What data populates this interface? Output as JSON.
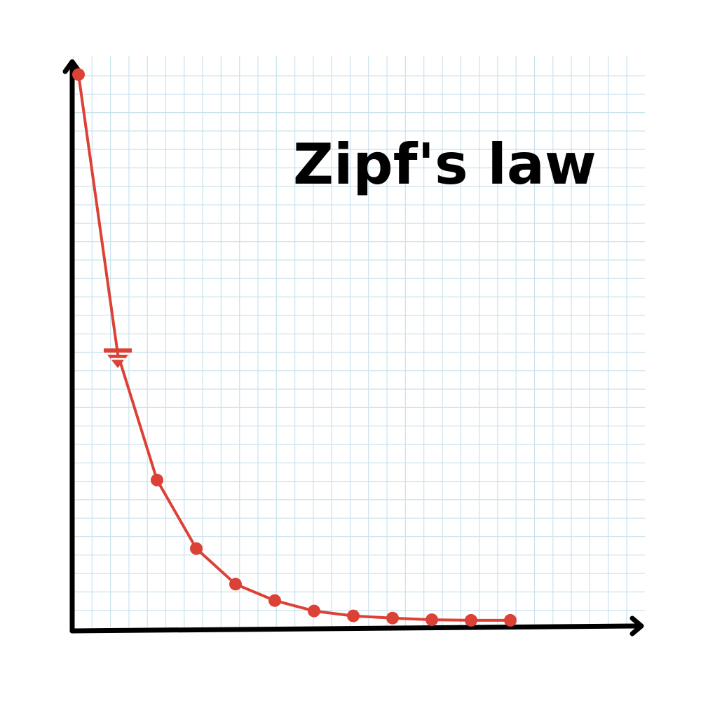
{
  "chart_data": {
    "type": "line",
    "title": "Zipf's law",
    "xlabel": "",
    "ylabel": "",
    "grid": true,
    "legend": "none",
    "x": [
      1,
      2,
      3,
      4,
      5,
      6,
      7,
      8,
      9,
      10,
      11,
      12
    ],
    "series": [
      {
        "color": "#dc4136",
        "marker": "circle",
        "values": [
          1.0,
          0.49,
          0.26,
          0.135,
          0.07,
          0.04,
          0.021,
          0.012,
          0.008,
          0.005,
          0.004,
          0.004
        ]
      }
    ],
    "special_marker": {
      "index": 1,
      "shape": "inverted-triangle"
    },
    "xlim": [
      1,
      16
    ],
    "ylim": [
      0,
      1.04
    ]
  }
}
